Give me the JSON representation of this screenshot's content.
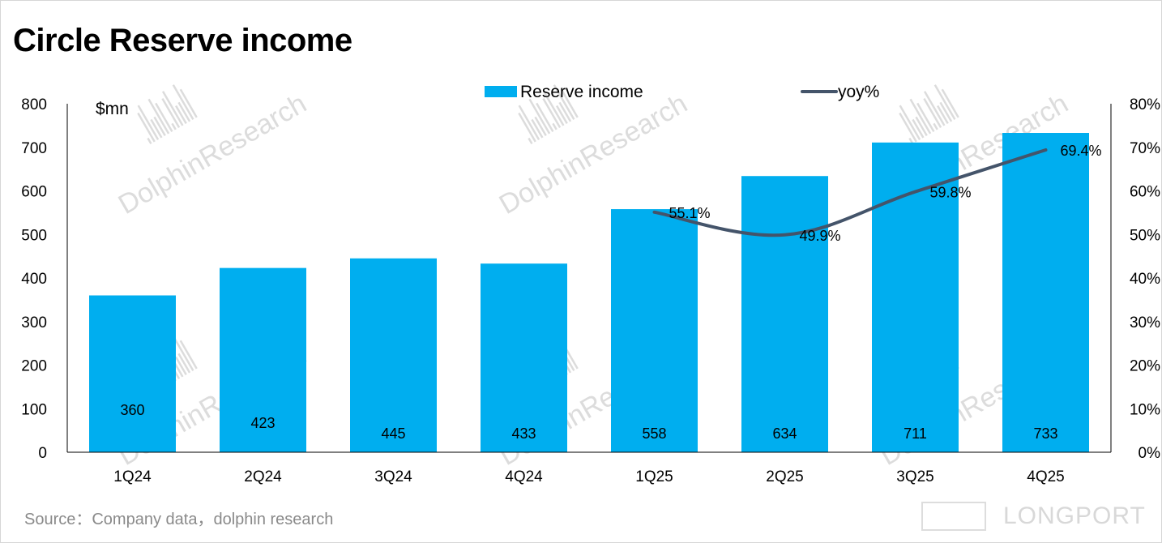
{
  "title": "Circle Reserve income",
  "source": "Source：Company data，dolphin research",
  "watermark": {
    "brand": "DolphinResearch",
    "footer_brand": "LONGPORT"
  },
  "colors": {
    "bar": "#00aeef",
    "line": "#44546a",
    "axis": "#000000",
    "watermark": "#dcdcdc"
  },
  "chart_data": {
    "type": "bar",
    "categories": [
      "1Q24",
      "2Q24",
      "3Q24",
      "4Q24",
      "1Q25",
      "2Q25",
      "3Q25",
      "4Q25"
    ],
    "series": [
      {
        "name": "Reserve income",
        "type": "bar",
        "axis": "left",
        "values": [
          360,
          423,
          445,
          433,
          558,
          634,
          711,
          733
        ],
        "labels": [
          "360",
          "423",
          "445",
          "433",
          "558",
          "634",
          "711",
          "733"
        ]
      },
      {
        "name": "yoy%",
        "type": "line",
        "axis": "right",
        "values": [
          null,
          null,
          null,
          null,
          55.1,
          49.9,
          59.8,
          69.4
        ],
        "labels": [
          "",
          "",
          "",
          "",
          "55.1%",
          "49.9%",
          "59.8%",
          "69.4%"
        ]
      }
    ],
    "ylabel": "$mn",
    "ylim": [
      0,
      800
    ],
    "yticks": [
      "0",
      "100",
      "200",
      "300",
      "400",
      "500",
      "600",
      "700",
      "800"
    ],
    "y2lim": [
      0,
      80
    ],
    "y2ticks": [
      "0%",
      "10%",
      "20%",
      "30%",
      "40%",
      "50%",
      "60%",
      "70%",
      "80%"
    ],
    "legend": "top-center",
    "grid": false
  }
}
